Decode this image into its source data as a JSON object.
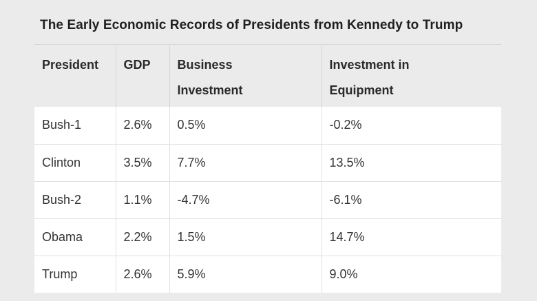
{
  "chart_data": {
    "type": "table",
    "title": "The Early Economic Records of Presidents from Kennedy to Trump",
    "columns": [
      "President",
      "GDP",
      "Business Investment",
      "Investment in Equipment"
    ],
    "header": {
      "president": "President",
      "gdp": "GDP",
      "business_line1": "Business",
      "business_line2": "Investment",
      "equipment_line1": "Investment in",
      "equipment_line2": "Equipment"
    },
    "rows": [
      {
        "president": "Bush-1",
        "gdp": "2.6%",
        "business": "0.5%",
        "equipment": "-0.2%"
      },
      {
        "president": "Clinton",
        "gdp": "3.5%",
        "business": "7.7%",
        "equipment": "13.5%"
      },
      {
        "president": "Bush-2",
        "gdp": "1.1%",
        "business": "-4.7%",
        "equipment": "-6.1%"
      },
      {
        "president": "Obama",
        "gdp": "2.2%",
        "business": "1.5%",
        "equipment": "14.7%"
      },
      {
        "president": "Trump",
        "gdp": "2.6%",
        "business": "5.9%",
        "equipment": "9.0%"
      }
    ]
  },
  "colors": {
    "page_background": "#ebebeb",
    "cell_background": "#ffffff",
    "text": "#333333"
  }
}
